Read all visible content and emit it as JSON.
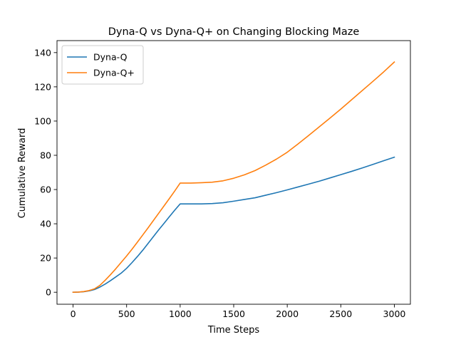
{
  "chart_data": {
    "type": "line",
    "title": "Dyna-Q vs Dyna-Q+ on Changing Blocking Maze",
    "xlabel": "Time Steps",
    "ylabel": "Cumulative Reward",
    "xlim": [
      -150,
      3150
    ],
    "ylim": [
      -7,
      147
    ],
    "xticks": [
      0,
      500,
      1000,
      1500,
      2000,
      2500,
      3000
    ],
    "yticks": [
      0,
      20,
      40,
      60,
      80,
      100,
      120,
      140
    ],
    "grid": false,
    "legend_position": "top-left",
    "series": [
      {
        "name": "Dyna-Q",
        "color": "#1f77b4",
        "x": [
          0,
          50,
          100,
          150,
          200,
          250,
          300,
          350,
          400,
          450,
          500,
          550,
          600,
          650,
          700,
          750,
          800,
          850,
          900,
          950,
          1000,
          1100,
          1200,
          1300,
          1400,
          1500,
          1600,
          1700,
          1800,
          1900,
          2000,
          2100,
          2200,
          2300,
          2400,
          2500,
          2600,
          2700,
          2800,
          2900,
          3000
        ],
        "y": [
          0,
          0.1,
          0.3,
          0.8,
          1.6,
          3.0,
          4.8,
          6.8,
          9.0,
          11.2,
          14.0,
          17.3,
          20.8,
          24.5,
          28.5,
          32.5,
          36.5,
          40.3,
          44.2,
          48.0,
          51.6,
          51.6,
          51.6,
          51.8,
          52.3,
          53.2,
          54.2,
          55.2,
          56.7,
          58.2,
          59.8,
          61.5,
          63.2,
          64.9,
          66.8,
          68.7,
          70.6,
          72.6,
          74.7,
          76.8,
          78.9
        ]
      },
      {
        "name": "Dyna-Q+",
        "color": "#ff7f0e",
        "x": [
          0,
          50,
          100,
          150,
          200,
          250,
          300,
          350,
          400,
          450,
          500,
          550,
          600,
          650,
          700,
          750,
          800,
          850,
          900,
          950,
          1000,
          1100,
          1200,
          1300,
          1400,
          1500,
          1600,
          1700,
          1800,
          1900,
          2000,
          2100,
          2200,
          2300,
          2400,
          2500,
          2600,
          2700,
          2800,
          2900,
          3000
        ],
        "y": [
          0,
          0.1,
          0.4,
          1.0,
          2.0,
          4.0,
          7.0,
          10.3,
          13.8,
          17.5,
          21.2,
          25.1,
          29.2,
          33.4,
          37.6,
          41.9,
          46.2,
          50.5,
          54.8,
          59.2,
          63.8,
          63.8,
          64.0,
          64.3,
          65.1,
          66.6,
          68.6,
          71.1,
          74.3,
          77.8,
          81.8,
          86.6,
          91.6,
          96.7,
          101.8,
          107.0,
          112.4,
          117.8,
          123.2,
          128.7,
          134.5
        ]
      }
    ]
  }
}
